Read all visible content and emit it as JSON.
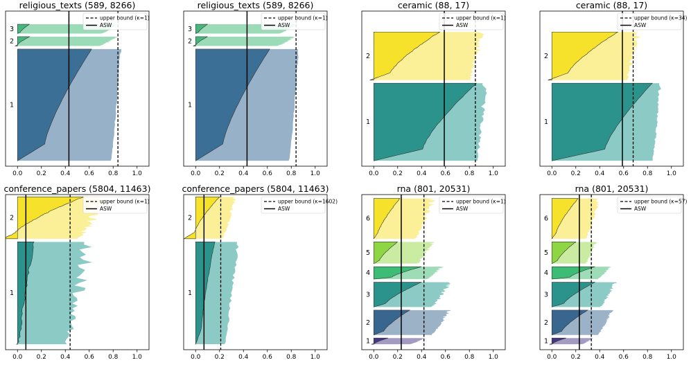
{
  "figure": {
    "description_color_map": "viridis"
  },
  "legend": {
    "upper_prefix": "upper bound (",
    "upper_suffix": ")",
    "asw": "ASW"
  },
  "chart_data": [
    {
      "type": "silhouette",
      "title": "religious_texts (589, 8266)",
      "kappa_label": "κ=1",
      "xticks": [
        "0.0",
        "0.2",
        "0.4",
        "0.6",
        "0.8",
        "1.0"
      ],
      "xlim": [
        -0.1,
        1.1
      ],
      "asw": 0.43,
      "upper_bound": 0.84,
      "clusters": [
        {
          "label": "1",
          "size": 0.72,
          "color": "#3b6f95",
          "light": "#97b1c8",
          "front_start": 0.0,
          "front_mid": 0.38,
          "front_end": 0.62,
          "back_mid": 0.78,
          "back_end": 0.86,
          "jag": 0.01
        },
        {
          "label": "2",
          "size": 0.06,
          "color": "#46b77c",
          "light": "#9bdbb8",
          "front_start": -0.02,
          "front_mid": 0.02,
          "front_end": 0.1,
          "back_mid": 0.68,
          "back_end": 0.82,
          "jag": 0.03,
          "neg": 0.1
        },
        {
          "label": "3",
          "size": 0.06,
          "color": "#46b77c",
          "light": "#9bdbb8",
          "front_start": 0.0,
          "front_mid": 0.04,
          "front_end": 0.1,
          "back_mid": 0.7,
          "back_end": 0.83,
          "jag": 0.02
        }
      ]
    },
    {
      "type": "silhouette",
      "title": "religious_texts (589, 8266)",
      "kappa_label": "κ=1",
      "xticks": [
        "0.0",
        "0.2",
        "0.4",
        "0.6",
        "0.8",
        "1.0"
      ],
      "xlim": [
        -0.1,
        1.1
      ],
      "asw": 0.43,
      "upper_bound": 0.84,
      "clusters": [
        {
          "label": "1",
          "size": 0.72,
          "color": "#3b6f95",
          "light": "#97b1c8",
          "front_start": 0.0,
          "front_mid": 0.38,
          "front_end": 0.62,
          "back_mid": 0.78,
          "back_end": 0.86,
          "jag": 0.01
        },
        {
          "label": "2",
          "size": 0.06,
          "color": "#46b77c",
          "light": "#9bdbb8",
          "front_start": -0.02,
          "front_mid": 0.02,
          "front_end": 0.1,
          "back_mid": 0.68,
          "back_end": 0.82,
          "jag": 0.03
        },
        {
          "label": "3",
          "size": 0.06,
          "color": "#46b77c",
          "light": "#9bdbb8",
          "front_start": 0.0,
          "front_mid": 0.04,
          "front_end": 0.1,
          "back_mid": 0.7,
          "back_end": 0.83,
          "jag": 0.02
        }
      ]
    },
    {
      "type": "silhouette",
      "title": "ceramic (88, 17)",
      "kappa_label": "κ=1",
      "xticks": [
        "0.0",
        "0.2",
        "0.4",
        "0.6",
        "0.8",
        "1.0"
      ],
      "xlim": [
        -0.1,
        1.1
      ],
      "asw": 0.59,
      "upper_bound": 0.85,
      "clusters": [
        {
          "label": "1",
          "size": 0.5,
          "color": "#2b928c",
          "light": "#8ccac5",
          "front_start": 0.0,
          "front_mid": 0.68,
          "front_end": 0.86,
          "back_mid": 0.86,
          "back_end": 0.92,
          "jag": 0.04
        },
        {
          "label": "2",
          "size": 0.31,
          "color": "#f7e22b",
          "light": "#fbef97",
          "front_start": -0.03,
          "front_mid": 0.25,
          "front_end": 0.55,
          "back_mid": 0.8,
          "back_end": 0.88,
          "jag": 0.06
        }
      ]
    },
    {
      "type": "silhouette",
      "title": "ceramic (88, 17)",
      "kappa_label": "κ=34",
      "xticks": [
        "0.0",
        "0.2",
        "0.4",
        "0.6",
        "0.8",
        "1.0"
      ],
      "xlim": [
        -0.1,
        1.1
      ],
      "asw": 0.59,
      "upper_bound": 0.68,
      "clusters": [
        {
          "label": "1",
          "size": 0.5,
          "color": "#2b928c",
          "light": "#8ccac5",
          "front_start": 0.0,
          "front_mid": 0.74,
          "front_end": 0.84,
          "back_mid": 0.84,
          "back_end": 0.9,
          "jag": 0.02
        },
        {
          "label": "2",
          "size": 0.31,
          "color": "#f7e22b",
          "light": "#fbef97",
          "front_start": -0.03,
          "front_mid": 0.25,
          "front_end": 0.55,
          "back_mid": 0.62,
          "back_end": 0.7,
          "jag": 0.05
        }
      ]
    },
    {
      "type": "silhouette",
      "title": "conference_papers (5804, 11463)",
      "kappa_label": "κ=1",
      "xticks": [
        "0.0",
        "0.2",
        "0.4",
        "0.6",
        "0.8",
        "1.0"
      ],
      "xlim": [
        -0.1,
        1.1
      ],
      "asw": 0.07,
      "upper_bound": 0.44,
      "clusters": [
        {
          "label": "1",
          "size": 0.66,
          "color": "#2b928c",
          "light": "#8ccac5",
          "front_start": 0.0,
          "front_mid": 0.05,
          "front_end": 0.14,
          "back_mid": 0.4,
          "back_end": 0.55,
          "jag": 0.12
        },
        {
          "label": "2",
          "size": 0.27,
          "color": "#f7e22b",
          "light": "#fbef97",
          "front_start": -0.12,
          "front_mid": 0.06,
          "front_end": 0.55,
          "back_mid": 0.5,
          "back_end": 0.7,
          "jag": 0.1
        }
      ]
    },
    {
      "type": "silhouette",
      "title": "conference_papers (5804, 11463)",
      "kappa_label": "κ=1602",
      "xticks": [
        "0.0",
        "0.2",
        "0.4",
        "0.6",
        "0.8",
        "1.0"
      ],
      "xlim": [
        -0.1,
        1.1
      ],
      "asw": 0.07,
      "upper_bound": 0.21,
      "clusters": [
        {
          "label": "1",
          "size": 0.66,
          "color": "#2b928c",
          "light": "#8ccac5",
          "front_start": 0.0,
          "front_mid": 0.08,
          "front_end": 0.16,
          "back_mid": 0.24,
          "back_end": 0.34,
          "jag": 0.03
        },
        {
          "label": "2",
          "size": 0.27,
          "color": "#f7e22b",
          "light": "#fbef97",
          "front_start": -0.1,
          "front_mid": 0.05,
          "front_end": 0.2,
          "back_mid": 0.22,
          "back_end": 0.32,
          "jag": 0.03
        }
      ]
    },
    {
      "type": "silhouette",
      "title": "rna (801, 20531)",
      "kappa_label": "κ=1",
      "xticks": [
        "0.0",
        "0.2",
        "0.4",
        "0.6",
        "0.8",
        "1.0"
      ],
      "xlim": [
        -0.1,
        1.1
      ],
      "asw": 0.23,
      "upper_bound": 0.42,
      "clusters": [
        {
          "label": "1",
          "size": 0.04,
          "color": "#453781",
          "light": "#a49bc2",
          "front_start": -0.02,
          "front_mid": 0.03,
          "front_end": 0.12,
          "back_mid": 0.3,
          "back_end": 0.42,
          "jag": 0.02
        },
        {
          "label": "2",
          "size": 0.16,
          "color": "#39668e",
          "light": "#9cb2c6",
          "front_start": 0.0,
          "front_mid": 0.14,
          "front_end": 0.3,
          "back_mid": 0.48,
          "back_end": 0.62,
          "jag": 0.03
        },
        {
          "label": "3",
          "size": 0.16,
          "color": "#2b928c",
          "light": "#8ccac5",
          "front_start": 0.0,
          "front_mid": 0.17,
          "front_end": 0.4,
          "back_mid": 0.48,
          "back_end": 0.62,
          "jag": 0.04
        },
        {
          "label": "4",
          "size": 0.08,
          "color": "#3cbc74",
          "light": "#9edcb8",
          "front_start": 0.0,
          "front_mid": 0.25,
          "front_end": 0.4,
          "back_mid": 0.44,
          "back_end": 0.56,
          "jag": 0.03
        },
        {
          "label": "5",
          "size": 0.14,
          "color": "#8fd644",
          "light": "#c9eba2",
          "front_start": 0.0,
          "front_mid": 0.08,
          "front_end": 0.2,
          "back_mid": 0.36,
          "back_end": 0.48,
          "jag": 0.04
        },
        {
          "label": "6",
          "size": 0.26,
          "color": "#f7e22b",
          "light": "#fbef97",
          "front_start": 0.0,
          "front_mid": 0.06,
          "front_end": 0.22,
          "back_mid": 0.34,
          "back_end": 0.48,
          "jag": 0.05
        }
      ]
    },
    {
      "type": "silhouette",
      "title": "rna (801, 20531)",
      "kappa_label": "κ=57",
      "xticks": [
        "0.0",
        "0.2",
        "0.4",
        "0.6",
        "0.8",
        "1.0"
      ],
      "xlim": [
        -0.1,
        1.1
      ],
      "asw": 0.23,
      "upper_bound": 0.33,
      "clusters": [
        {
          "label": "1",
          "size": 0.04,
          "color": "#453781",
          "light": "#a49bc2",
          "front_start": -0.02,
          "front_mid": 0.03,
          "front_end": 0.12,
          "back_mid": 0.25,
          "back_end": 0.34,
          "jag": 0.02
        },
        {
          "label": "2",
          "size": 0.16,
          "color": "#39668e",
          "light": "#9cb2c6",
          "front_start": 0.0,
          "front_mid": 0.14,
          "front_end": 0.3,
          "back_mid": 0.38,
          "back_end": 0.5,
          "jag": 0.02
        },
        {
          "label": "3",
          "size": 0.16,
          "color": "#2b928c",
          "light": "#8ccac5",
          "front_start": 0.0,
          "front_mid": 0.17,
          "front_end": 0.36,
          "back_mid": 0.4,
          "back_end": 0.52,
          "jag": 0.03
        },
        {
          "label": "4",
          "size": 0.08,
          "color": "#3cbc74",
          "light": "#9edcb8",
          "front_start": 0.0,
          "front_mid": 0.25,
          "front_end": 0.36,
          "back_mid": 0.38,
          "back_end": 0.48,
          "jag": 0.02
        },
        {
          "label": "5",
          "size": 0.14,
          "color": "#8fd644",
          "light": "#c9eba2",
          "front_start": 0.0,
          "front_mid": 0.08,
          "front_end": 0.2,
          "back_mid": 0.28,
          "back_end": 0.36,
          "jag": 0.03
        },
        {
          "label": "6",
          "size": 0.26,
          "color": "#f7e22b",
          "light": "#fbef97",
          "front_start": 0.0,
          "front_mid": 0.06,
          "front_end": 0.22,
          "back_mid": 0.28,
          "back_end": 0.38,
          "jag": 0.03
        }
      ]
    }
  ]
}
